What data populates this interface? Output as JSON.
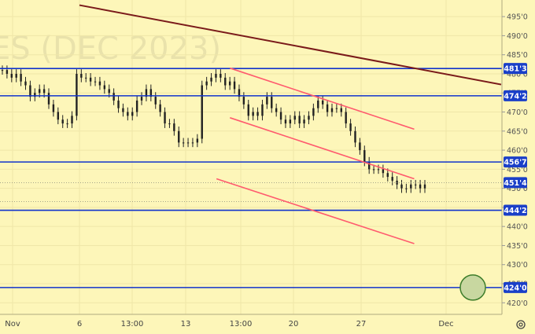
{
  "chart_data": {
    "type": "candlestick",
    "watermark": "ES (DEC 2023)",
    "x_ticks": [
      "Nov",
      "6",
      "13:00",
      "13",
      "13:00",
      "20",
      "27",
      "Dec"
    ],
    "y_ticks": [
      "420'0",
      "425'0",
      "430'0",
      "435'0",
      "440'0",
      "445'0",
      "450'0",
      "455'0",
      "460'0",
      "465'0",
      "470'0",
      "475'0",
      "480'0",
      "485'0",
      "490'0",
      "495'0"
    ],
    "ylim": [
      418,
      497.5
    ],
    "horizontal_levels": [
      {
        "label": "481'3",
        "value": 481.4
      },
      {
        "label": "474'2",
        "value": 474.25
      },
      {
        "label": "456'7",
        "value": 456.9
      },
      {
        "label": "444'2",
        "value": 444.25
      },
      {
        "label": "424'0",
        "value": 424.0
      }
    ],
    "last_price": {
      "label": "451'4",
      "value": 451.5
    },
    "colors": {
      "background": "#fdf6b9",
      "level_line": "#1133cc",
      "badge": "#1a3fc8",
      "channel": "#ff5a6e",
      "trend": "#7a1a1a",
      "candle": "#222222",
      "target_fill": "#c8d7a0",
      "target_stroke": "#3d7d2a"
    },
    "series": [
      {
        "values": [
          481,
          480,
          479,
          480,
          478,
          477,
          474,
          475,
          476,
          475,
          472,
          470,
          468,
          467,
          467,
          469,
          480,
          479,
          479,
          478,
          478,
          477,
          476,
          475,
          473,
          471,
          470,
          469,
          470,
          473,
          474,
          476,
          474,
          472,
          470,
          467,
          467,
          465,
          462,
          462,
          462,
          462,
          463,
          477,
          478,
          479,
          480,
          479,
          477,
          478,
          476,
          474,
          472,
          469,
          470,
          469,
          472,
          474,
          471,
          470,
          468,
          467,
          468,
          469,
          467,
          468,
          469,
          471,
          473,
          472,
          470,
          471,
          471,
          470,
          467,
          465,
          462,
          460,
          457,
          455,
          455,
          455,
          454,
          453,
          452,
          451,
          450,
          450,
          451,
          451,
          450,
          451
        ]
      }
    ],
    "channel_lines": [
      {
        "start": {
          "x": "Nov 15 21:00",
          "y": 481.5
        },
        "end": {
          "x": "Nov 30 18:00",
          "y": 465.5
        }
      },
      {
        "start": {
          "x": "Nov 15 21:00",
          "y": 468.5
        },
        "end": {
          "x": "Nov 30 18:00",
          "y": 452.5
        }
      },
      {
        "start": {
          "x": "Nov 15 00:00",
          "y": 452.5
        },
        "end": {
          "x": "Nov 30 18:00",
          "y": 435.5
        }
      }
    ],
    "trend_line": {
      "start": {
        "x": "Nov 6",
        "y": 498
      },
      "end": {
        "x": "Dec 3",
        "y": 478.5
      }
    },
    "target_marker": {
      "value": 424.0
    }
  }
}
